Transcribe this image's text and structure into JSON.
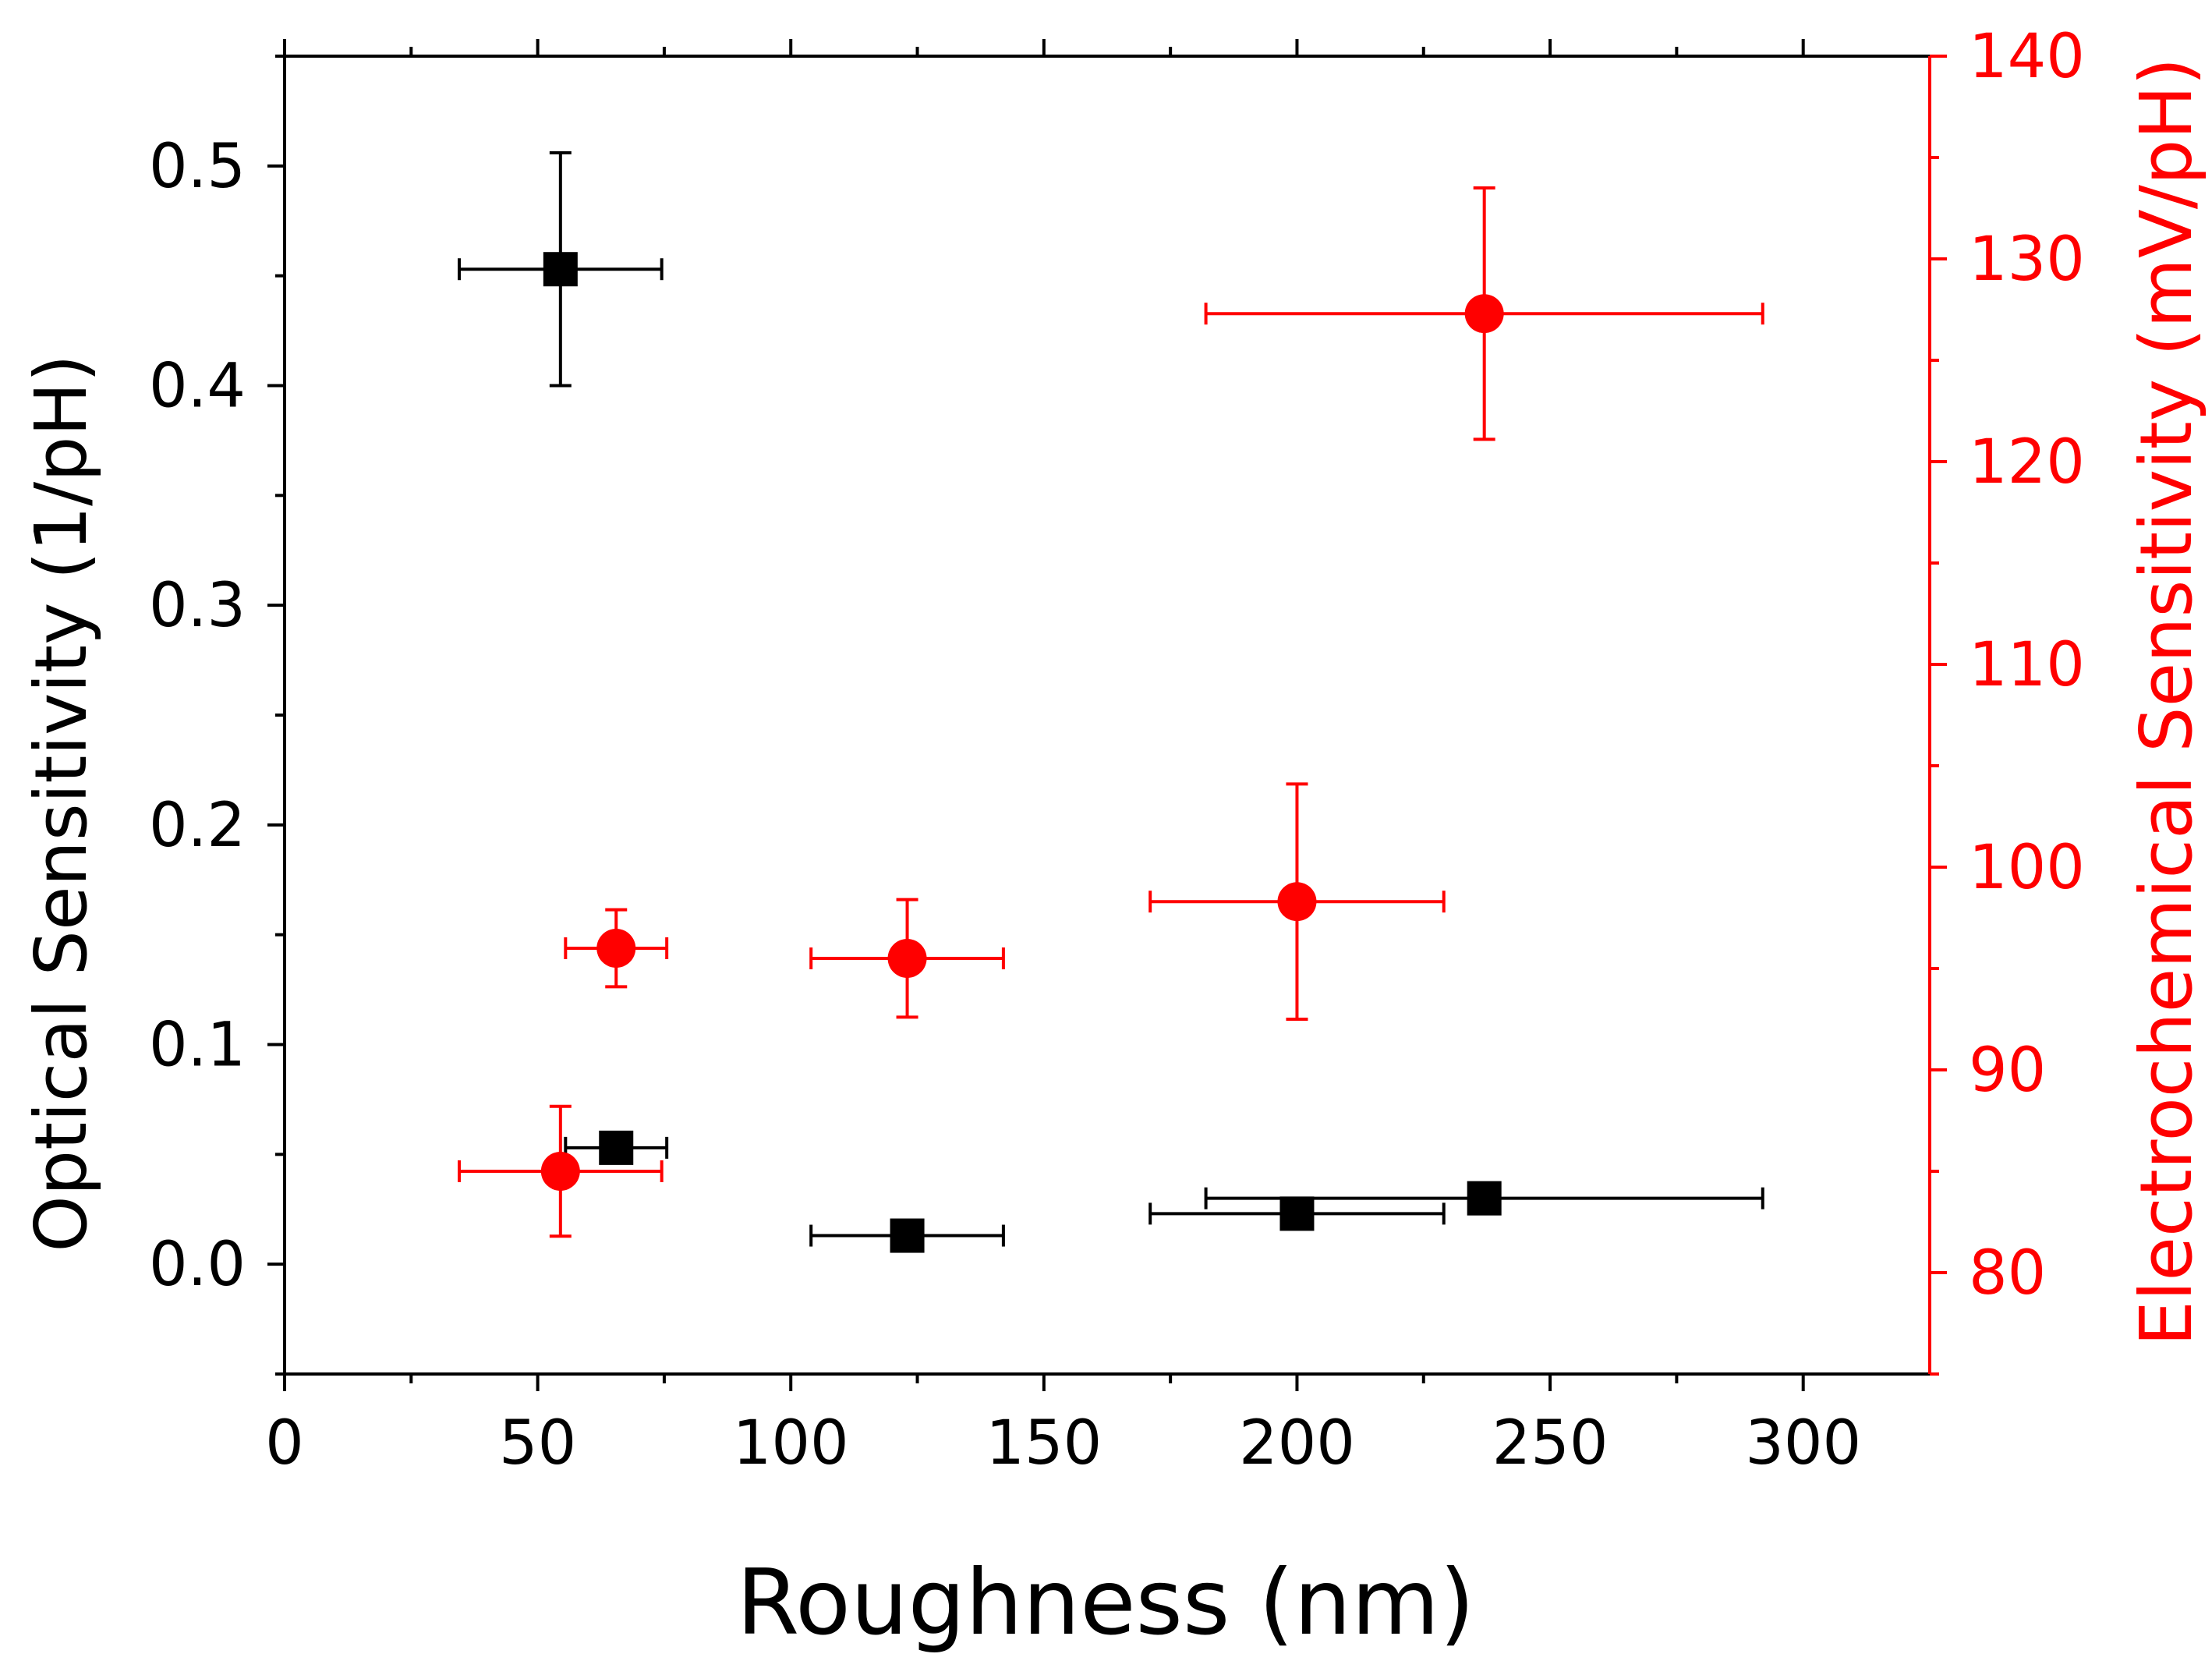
{
  "chart_data": {
    "type": "scatter",
    "title": "",
    "xlabel": "Roughness (nm)",
    "ylabel": "Optical Sensitivity (1/pH)",
    "y2label": "Electrochemical Sensitivity (mV/pH)",
    "xlim": [
      0,
      325
    ],
    "ylim": [
      -0.05,
      0.55
    ],
    "y2lim": [
      75,
      140
    ],
    "x_ticks": [
      0,
      50,
      100,
      150,
      200,
      250,
      300
    ],
    "x_tick_labels": [
      "0",
      "50",
      "100",
      "150",
      "200",
      "250",
      "300"
    ],
    "y_ticks": [
      0.0,
      0.1,
      0.2,
      0.3,
      0.4,
      0.5
    ],
    "y_tick_labels": [
      "0.0",
      "0.1",
      "0.2",
      "0.3",
      "0.4",
      "0.5"
    ],
    "y2_ticks": [
      80,
      90,
      100,
      110,
      120,
      130,
      140
    ],
    "y2_tick_labels": [
      "80",
      "90",
      "100",
      "110",
      "120",
      "130",
      "140"
    ],
    "grid": false,
    "legend": "none",
    "series": [
      {
        "name": "Optical Sensitivity",
        "axis": "left",
        "marker": "square",
        "color": "#000000",
        "points": [
          {
            "x": 54.5,
            "xerr": 20,
            "y": 0.453,
            "yerr": 0.053
          },
          {
            "x": 65.5,
            "xerr": 10,
            "y": 0.053,
            "yerr": 0.0
          },
          {
            "x": 123,
            "xerr": 19,
            "y": 0.013,
            "yerr": 0.0
          },
          {
            "x": 200,
            "xerr": 29,
            "y": 0.023,
            "yerr": 0.0
          },
          {
            "x": 237,
            "xerr": 55,
            "y": 0.03,
            "yerr": 0.0
          }
        ]
      },
      {
        "name": "Electrochemical Sensitivity",
        "axis": "right",
        "marker": "circle",
        "color": "#ff0000",
        "points": [
          {
            "x": 54.5,
            "xerr": 20,
            "y": 85.0,
            "yerr": 3.2
          },
          {
            "x": 65.5,
            "xerr": 10,
            "y": 96.0,
            "yerr": 1.9
          },
          {
            "x": 123,
            "xerr": 19,
            "y": 95.5,
            "yerr": 2.9
          },
          {
            "x": 200,
            "xerr": 29,
            "y": 98.3,
            "yerr": 5.8
          },
          {
            "x": 237,
            "xerr": 55,
            "y": 127.3,
            "yerr": 6.2
          }
        ]
      }
    ]
  }
}
